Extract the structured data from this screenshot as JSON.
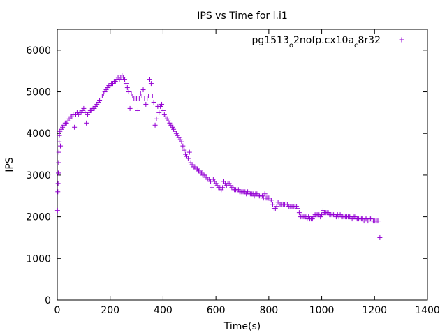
{
  "chart_data": {
    "type": "scatter",
    "title": "IPS vs Time for l.i1",
    "xlabel": "Time(s)",
    "ylabel": "IPS",
    "xlim": [
      0,
      1400
    ],
    "ylim": [
      0,
      6500
    ],
    "xticks": [
      0,
      200,
      400,
      600,
      800,
      1000,
      1200,
      1400
    ],
    "yticks": [
      0,
      1000,
      2000,
      3000,
      4000,
      5000,
      6000
    ],
    "grid": false,
    "legend_position": "top-right",
    "marker": "plus",
    "color": "#9400D3",
    "series": [
      {
        "name": "pg1513_o2nofp.cx10a_c8r32",
        "legend_parts": [
          {
            "text": "pg1513",
            "sub": false
          },
          {
            "text": "o",
            "sub": true
          },
          {
            "text": "2nofp.cx10a",
            "sub": false
          },
          {
            "text": "c",
            "sub": true
          },
          {
            "text": "8r32",
            "sub": false
          }
        ],
        "points": [
          [
            1,
            2150
          ],
          [
            2,
            2600
          ],
          [
            3,
            2800
          ],
          [
            4,
            3050
          ],
          [
            5,
            3300
          ],
          [
            6,
            3550
          ],
          [
            7,
            3800
          ],
          [
            8,
            3950
          ],
          [
            10,
            4050
          ],
          [
            12,
            3700
          ],
          [
            15,
            4100
          ],
          [
            20,
            4150
          ],
          [
            25,
            4200
          ],
          [
            30,
            4250
          ],
          [
            35,
            4250
          ],
          [
            40,
            4300
          ],
          [
            45,
            4350
          ],
          [
            50,
            4400
          ],
          [
            55,
            4400
          ],
          [
            60,
            4450
          ],
          [
            65,
            4150
          ],
          [
            70,
            4450
          ],
          [
            75,
            4500
          ],
          [
            80,
            4450
          ],
          [
            85,
            4500
          ],
          [
            90,
            4500
          ],
          [
            95,
            4550
          ],
          [
            100,
            4600
          ],
          [
            105,
            4500
          ],
          [
            110,
            4250
          ],
          [
            115,
            4450
          ],
          [
            120,
            4500
          ],
          [
            125,
            4550
          ],
          [
            130,
            4550
          ],
          [
            135,
            4600
          ],
          [
            140,
            4600
          ],
          [
            145,
            4650
          ],
          [
            150,
            4700
          ],
          [
            155,
            4750
          ],
          [
            160,
            4800
          ],
          [
            165,
            4850
          ],
          [
            170,
            4900
          ],
          [
            175,
            4950
          ],
          [
            180,
            5000
          ],
          [
            185,
            5050
          ],
          [
            190,
            5100
          ],
          [
            195,
            5150
          ],
          [
            200,
            5150
          ],
          [
            205,
            5200
          ],
          [
            210,
            5200
          ],
          [
            215,
            5250
          ],
          [
            220,
            5250
          ],
          [
            225,
            5300
          ],
          [
            230,
            5350
          ],
          [
            235,
            5300
          ],
          [
            240,
            5350
          ],
          [
            245,
            5400
          ],
          [
            250,
            5350
          ],
          [
            255,
            5300
          ],
          [
            260,
            5200
          ],
          [
            265,
            5100
          ],
          [
            270,
            5000
          ],
          [
            275,
            4600
          ],
          [
            280,
            4950
          ],
          [
            285,
            4900
          ],
          [
            290,
            4850
          ],
          [
            295,
            4850
          ],
          [
            300,
            4850
          ],
          [
            305,
            4550
          ],
          [
            310,
            4850
          ],
          [
            315,
            4950
          ],
          [
            320,
            4900
          ],
          [
            325,
            5050
          ],
          [
            330,
            4850
          ],
          [
            335,
            4700
          ],
          [
            340,
            4850
          ],
          [
            345,
            4900
          ],
          [
            350,
            5300
          ],
          [
            355,
            5200
          ],
          [
            360,
            4900
          ],
          [
            365,
            4750
          ],
          [
            370,
            4200
          ],
          [
            375,
            4350
          ],
          [
            380,
            4650
          ],
          [
            385,
            4500
          ],
          [
            390,
            4650
          ],
          [
            395,
            4700
          ],
          [
            400,
            4550
          ],
          [
            405,
            4450
          ],
          [
            410,
            4400
          ],
          [
            415,
            4350
          ],
          [
            420,
            4300
          ],
          [
            425,
            4250
          ],
          [
            430,
            4200
          ],
          [
            435,
            4150
          ],
          [
            440,
            4100
          ],
          [
            445,
            4050
          ],
          [
            450,
            4000
          ],
          [
            455,
            3950
          ],
          [
            460,
            3900
          ],
          [
            465,
            3850
          ],
          [
            470,
            3800
          ],
          [
            475,
            3700
          ],
          [
            480,
            3600
          ],
          [
            485,
            3500
          ],
          [
            490,
            3450
          ],
          [
            495,
            3400
          ],
          [
            500,
            3550
          ],
          [
            505,
            3300
          ],
          [
            510,
            3250
          ],
          [
            515,
            3200
          ],
          [
            520,
            3200
          ],
          [
            525,
            3150
          ],
          [
            530,
            3150
          ],
          [
            535,
            3100
          ],
          [
            540,
            3100
          ],
          [
            545,
            3050
          ],
          [
            550,
            3000
          ],
          [
            555,
            3000
          ],
          [
            560,
            2950
          ],
          [
            565,
            2950
          ],
          [
            570,
            2900
          ],
          [
            575,
            2900
          ],
          [
            580,
            2850
          ],
          [
            585,
            2700
          ],
          [
            590,
            2900
          ],
          [
            595,
            2850
          ],
          [
            600,
            2800
          ],
          [
            605,
            2750
          ],
          [
            610,
            2700
          ],
          [
            615,
            2700
          ],
          [
            620,
            2650
          ],
          [
            625,
            2700
          ],
          [
            630,
            2850
          ],
          [
            635,
            2800
          ],
          [
            640,
            2750
          ],
          [
            645,
            2800
          ],
          [
            650,
            2800
          ],
          [
            655,
            2750
          ],
          [
            660,
            2700
          ],
          [
            665,
            2700
          ],
          [
            670,
            2650
          ],
          [
            675,
            2650
          ],
          [
            680,
            2650
          ],
          [
            685,
            2650
          ],
          [
            690,
            2600
          ],
          [
            695,
            2600
          ],
          [
            700,
            2600
          ],
          [
            705,
            2600
          ],
          [
            710,
            2600
          ],
          [
            715,
            2550
          ],
          [
            720,
            2600
          ],
          [
            725,
            2550
          ],
          [
            730,
            2550
          ],
          [
            735,
            2550
          ],
          [
            740,
            2550
          ],
          [
            745,
            2500
          ],
          [
            750,
            2550
          ],
          [
            755,
            2550
          ],
          [
            760,
            2500
          ],
          [
            765,
            2500
          ],
          [
            770,
            2500
          ],
          [
            775,
            2500
          ],
          [
            780,
            2450
          ],
          [
            785,
            2550
          ],
          [
            790,
            2450
          ],
          [
            795,
            2450
          ],
          [
            800,
            2450
          ],
          [
            805,
            2400
          ],
          [
            810,
            2400
          ],
          [
            815,
            2300
          ],
          [
            820,
            2200
          ],
          [
            825,
            2200
          ],
          [
            830,
            2250
          ],
          [
            835,
            2350
          ],
          [
            840,
            2300
          ],
          [
            845,
            2300
          ],
          [
            850,
            2300
          ],
          [
            855,
            2300
          ],
          [
            860,
            2300
          ],
          [
            865,
            2300
          ],
          [
            870,
            2300
          ],
          [
            875,
            2250
          ],
          [
            880,
            2250
          ],
          [
            885,
            2250
          ],
          [
            890,
            2250
          ],
          [
            895,
            2250
          ],
          [
            900,
            2250
          ],
          [
            905,
            2250
          ],
          [
            910,
            2200
          ],
          [
            915,
            2100
          ],
          [
            920,
            2000
          ],
          [
            925,
            2000
          ],
          [
            930,
            2000
          ],
          [
            935,
            2000
          ],
          [
            940,
            2000
          ],
          [
            945,
            1950
          ],
          [
            950,
            2000
          ],
          [
            955,
            1950
          ],
          [
            960,
            1950
          ],
          [
            965,
            1950
          ],
          [
            970,
            2000
          ],
          [
            975,
            2050
          ],
          [
            980,
            2050
          ],
          [
            985,
            2050
          ],
          [
            990,
            2050
          ],
          [
            995,
            2000
          ],
          [
            1000,
            2050
          ],
          [
            1005,
            2150
          ],
          [
            1010,
            2100
          ],
          [
            1015,
            2100
          ],
          [
            1020,
            2100
          ],
          [
            1025,
            2100
          ],
          [
            1030,
            2050
          ],
          [
            1035,
            2050
          ],
          [
            1040,
            2050
          ],
          [
            1045,
            2050
          ],
          [
            1050,
            2050
          ],
          [
            1055,
            2000
          ],
          [
            1060,
            2050
          ],
          [
            1065,
            2000
          ],
          [
            1070,
            2050
          ],
          [
            1075,
            2000
          ],
          [
            1080,
            2000
          ],
          [
            1085,
            2000
          ],
          [
            1090,
            2000
          ],
          [
            1095,
            2000
          ],
          [
            1100,
            2000
          ],
          [
            1105,
            2000
          ],
          [
            1110,
            2000
          ],
          [
            1115,
            1950
          ],
          [
            1120,
            2000
          ],
          [
            1125,
            2000
          ],
          [
            1130,
            1950
          ],
          [
            1135,
            1950
          ],
          [
            1140,
            1950
          ],
          [
            1145,
            1950
          ],
          [
            1150,
            1950
          ],
          [
            1155,
            1950
          ],
          [
            1160,
            1900
          ],
          [
            1165,
            1950
          ],
          [
            1170,
            1950
          ],
          [
            1175,
            1900
          ],
          [
            1180,
            1950
          ],
          [
            1185,
            1950
          ],
          [
            1190,
            1900
          ],
          [
            1195,
            1900
          ],
          [
            1200,
            1900
          ],
          [
            1205,
            1900
          ],
          [
            1210,
            1900
          ],
          [
            1215,
            1900
          ],
          [
            1220,
            1500
          ]
        ]
      }
    ]
  }
}
